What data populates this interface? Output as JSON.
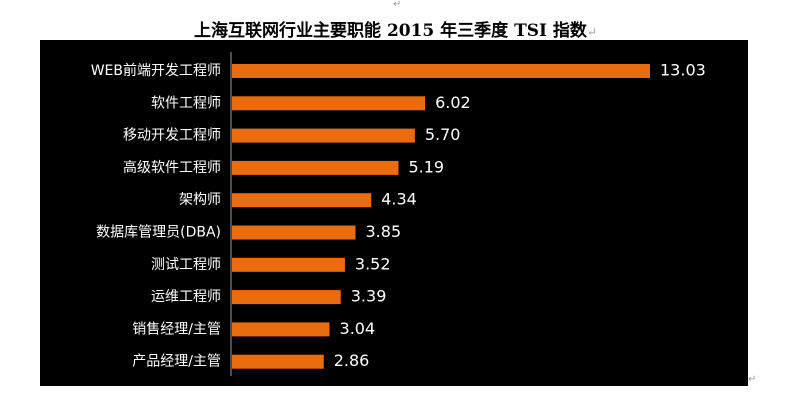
{
  "header_mark": "↵",
  "title": "上海互联网行业主要职能 2015 年三季度 TSI 指数",
  "title_mark": "↵",
  "footer_mark": "↵",
  "colors": {
    "bar": "#E96C0E",
    "panel": "#000000",
    "text": "#FFFFFF"
  },
  "chart_data": {
    "type": "bar",
    "orientation": "horizontal",
    "title": "上海互联网行业主要职能 2015 年三季度 TSI 指数",
    "categories": [
      "WEB前端开发工程师",
      "软件工程师",
      "移动开发工程师",
      "高级软件工程师",
      "架构师",
      "数据库管理员(DBA)",
      "测试工程师",
      "运维工程师",
      "销售经理/主管",
      "产品经理/主管"
    ],
    "values": [
      13.03,
      6.02,
      5.7,
      5.19,
      4.34,
      3.85,
      3.52,
      3.39,
      3.04,
      2.86
    ],
    "value_labels": [
      "13.03",
      "6.02",
      "5.70",
      "5.19",
      "4.34",
      "3.85",
      "3.52",
      "3.39",
      "3.04",
      "2.86"
    ],
    "xlim": [
      0,
      13.03
    ],
    "grid": false,
    "legend": "none",
    "data_labels": "outside-end"
  }
}
